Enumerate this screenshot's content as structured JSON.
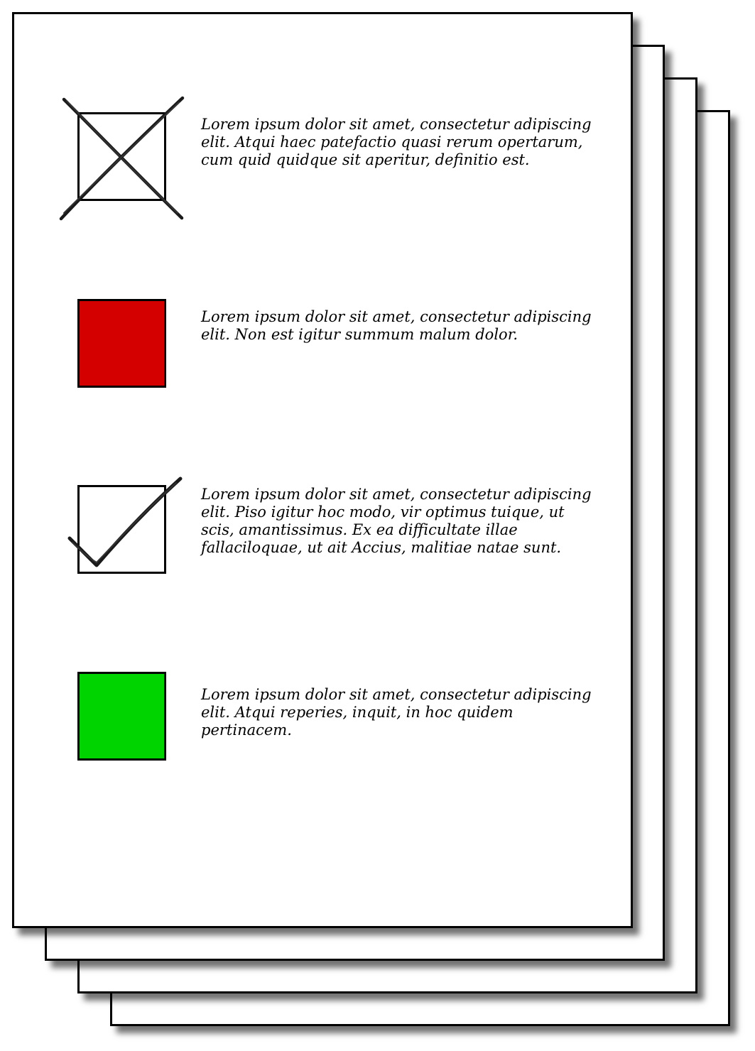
{
  "items": [
    {
      "marker": "crossed-box",
      "text": "Lorem ipsum dolor sit amet, consectetur adipiscing elit. Atqui haec patefactio quasi rerum opertarum, cum quid quidque sit aperitur, definitio est."
    },
    {
      "marker": "red-box",
      "color": "#d40000",
      "text": "Lorem ipsum dolor sit amet, consectetur adipiscing elit. Non est igitur summum malum dolor."
    },
    {
      "marker": "checked-box",
      "text": "Lorem ipsum dolor sit amet, consectetur adipiscing elit. Piso igitur hoc modo, vir optimus tuique, ut scis, amantissimus. Ex ea difficultate illae fallaciloquae, ut ait Accius, malitiae natae sunt."
    },
    {
      "marker": "green-box",
      "color": "#00d400",
      "text": "Lorem ipsum dolor sit amet, consectetur adipiscing elit. Atqui reperies, inquit, in hoc quidem pertinacem."
    }
  ]
}
